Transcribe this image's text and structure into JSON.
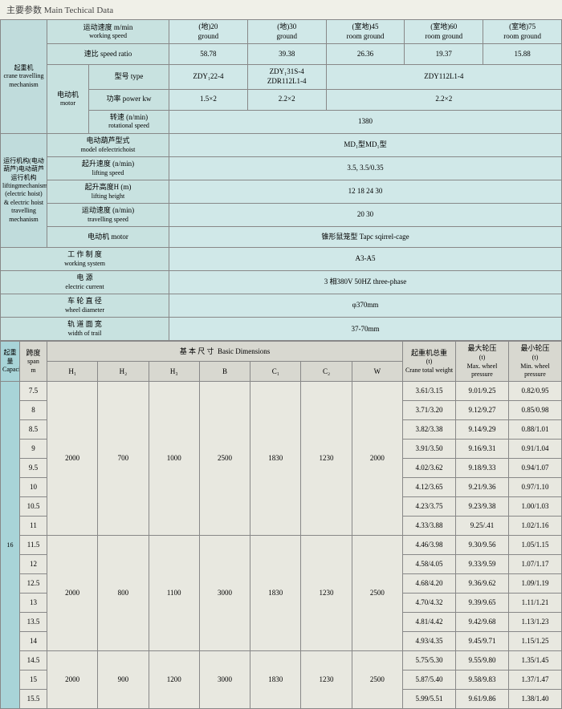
{
  "title_cn": "主要参数",
  "title_en": "Main Techical Data",
  "colors": {
    "upper_bg": "#d0e8e8",
    "upper_label": "#c0dcdc",
    "upper_param": "#c8e2e0",
    "lower_bg": "#e8e8e0",
    "side_bg": "#a8d4d8",
    "border": "#888888"
  },
  "u": {
    "crane_label_cn": "起重机",
    "crane_label_en": "crane travelling mechanism",
    "crane_working_cn": "运动速度 m/min",
    "crane_working_en": "working speed",
    "c20": "(地)20\nground",
    "c30": "(地)30\nground",
    "c45": "(室地)45\nroom ground",
    "c60": "(室地)60\nroom ground",
    "c75": "(室地)75\nroom ground",
    "speed_ratio_cn": "速比",
    "speed_ratio_en": "speed ratio",
    "sr1": "58.78",
    "sr2": "39.38",
    "sr3": "26.36",
    "sr4": "19.37",
    "sr5": "15.88",
    "motor_cn": "电动机",
    "motor_en": "motor",
    "type_cn": "型号",
    "type_en": "type",
    "t1": "ZDY₁22-4",
    "t2": "ZDY₁31S-4\nZDR112L1-4",
    "t3": "ZDY112L1-4",
    "power_cn": "功率",
    "power_en": "power kw",
    "p1": "1.5×2",
    "p2": "2.2×2",
    "p3": "2.2×2",
    "rot_cn": "转速 (n/min)",
    "rot_en": "rotational speed",
    "rot_v": "1380",
    "hoist_label_cn": "运行机构(电动葫芦)电动葫芦运行机构",
    "hoist_label_en": "liftingmechanism (electric hoist) & electric hoist travelling mechanism",
    "model_cn": "电动葫芦型式",
    "model_en": "model ofelectrichoist",
    "model_v": "MD₁型MD₁型",
    "lift_cn": "起升速度 (n/min)",
    "lift_en": "lifting speed",
    "lift_v": "3.5, 3.5/0.35",
    "height_cn": "起升高度H (m)",
    "height_en": "lifting height",
    "height_v": "12 18 24 30",
    "trav_cn": "运动速度 (n/min)",
    "trav_en": "travelling speed",
    "trav_v": "20 30",
    "m2_cn": "电动机",
    "m2_en": "motor",
    "m2_v": "锥形鼠笼型 Tapc sqirrel-cage",
    "ws_cn": "工 作 制 度",
    "ws_en": "working system",
    "ws_v": "A3-A5",
    "ec_cn": "电   源",
    "ec_en": "electric current",
    "ec_v": "3 相380V   50HZ three-phase",
    "wd_cn": "车 轮 直 径",
    "wd_en": "wheel diameter",
    "wd_v": "φ370mm",
    "wt_cn": "轨 道 面 宽",
    "wt_en": "width of trail",
    "wt_v": "37-70mm"
  },
  "l": {
    "cap_cn": "起重量",
    "cap_en": "Capacity",
    "span_cn": "跨度",
    "span_en": "span",
    "span_m": "m",
    "basic_cn": "基  本  尺  寸",
    "basic_en": "Basic Dimensions",
    "H1": "H₁",
    "H2": "H₂",
    "H3": "H₃",
    "B": "B",
    "C1": "C₁",
    "C2": "C₂",
    "W": "W",
    "col_tw_cn": "起重机总重",
    "col_tw_u": "(t)",
    "col_tw_en": "Crane total weight",
    "col_max_cn": "最大轮压",
    "col_max_u": "(t)",
    "col_max_en": "Max. wheel pressure",
    "col_min_cn": "最小轮压",
    "col_min_u": "(t)",
    "col_min_en": "Min. wheel pressure",
    "cap_val": "16",
    "g1": {
      "H1": "2000",
      "H2": "700",
      "H3": "1000",
      "B": "2500",
      "C1": "1830",
      "C2": "1230",
      "W": "2000"
    },
    "g2": {
      "H1": "2000",
      "H2": "800",
      "H3": "1100",
      "B": "3000",
      "C1": "1830",
      "C2": "1230",
      "W": "2500"
    },
    "g3": {
      "H1": "2000",
      "H2": "900",
      "H3": "1200",
      "B": "3000",
      "C1": "1830",
      "C2": "1230",
      "W": "2500"
    },
    "r": [
      {
        "s": "7.5",
        "tw": "3.61/3.15",
        "mx": "9.01/9.25",
        "mn": "0.82/0.95"
      },
      {
        "s": "8",
        "tw": "3.71/3.20",
        "mx": "9.12/9.27",
        "mn": "0.85/0.98"
      },
      {
        "s": "8.5",
        "tw": "3.82/3.38",
        "mx": "9.14/9.29",
        "mn": "0.88/1.01"
      },
      {
        "s": "9",
        "tw": "3.91/3.50",
        "mx": "9.16/9.31",
        "mn": "0.91/1.04"
      },
      {
        "s": "9.5",
        "tw": "4.02/3.62",
        "mx": "9.18/9.33",
        "mn": "0.94/1.07"
      },
      {
        "s": "10",
        "tw": "4.12/3.65",
        "mx": "9.21/9.36",
        "mn": "0.97/1.10"
      },
      {
        "s": "10.5",
        "tw": "4.23/3.75",
        "mx": "9.23/9.38",
        "mn": "1.00/1.03"
      },
      {
        "s": "11",
        "tw": "4.33/3.88",
        "mx": "9.25/.41",
        "mn": "1.02/1.16"
      },
      {
        "s": "11.5",
        "tw": "4.46/3.98",
        "mx": "9.30/9.56",
        "mn": "1.05/1.15"
      },
      {
        "s": "12",
        "tw": "4.58/4.05",
        "mx": "9.33/9.59",
        "mn": "1.07/1.17"
      },
      {
        "s": "12.5",
        "tw": "4.68/4.20",
        "mx": "9.36/9.62",
        "mn": "1.09/1.19"
      },
      {
        "s": "13",
        "tw": "4.70/4.32",
        "mx": "9.39/9.65",
        "mn": "1.11/1.21"
      },
      {
        "s": "13.5",
        "tw": "4.81/4.42",
        "mx": "9.42/9.68",
        "mn": "1.13/1.23"
      },
      {
        "s": "14",
        "tw": "4.93/4.35",
        "mx": "9.45/9.71",
        "mn": "1.15/1.25"
      },
      {
        "s": "14.5",
        "tw": "5.75/5.30",
        "mx": "9.55/9.80",
        "mn": "1.35/1.45"
      },
      {
        "s": "15",
        "tw": "5.87/5.40",
        "mx": "9.58/9.83",
        "mn": "1.37/1.47"
      },
      {
        "s": "15.5",
        "tw": "5.99/5.51",
        "mx": "9.61/9.86",
        "mn": "1.38/1.40"
      }
    ]
  }
}
